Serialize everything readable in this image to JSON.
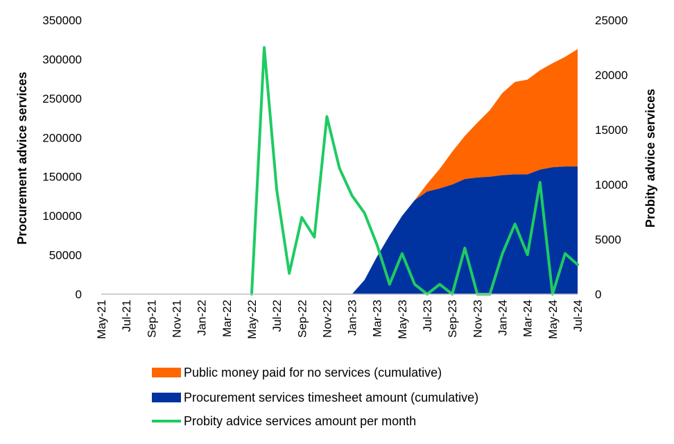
{
  "chart_data": {
    "type": "area",
    "x": [
      "May-21",
      "Jun-21",
      "Jul-21",
      "Aug-21",
      "Sep-21",
      "Oct-21",
      "Nov-21",
      "Dec-21",
      "Jan-22",
      "Feb-22",
      "Mar-22",
      "Apr-22",
      "May-22",
      "Jun-22",
      "Jul-22",
      "Aug-22",
      "Sep-22",
      "Oct-22",
      "Nov-22",
      "Dec-22",
      "Jan-23",
      "Feb-23",
      "Mar-23",
      "Apr-23",
      "May-23",
      "Jun-23",
      "Jul-23",
      "Aug-23",
      "Sep-23",
      "Oct-23",
      "Nov-23",
      "Dec-23",
      "Jan-24",
      "Feb-24",
      "Mar-24",
      "Apr-24",
      "May-24",
      "Jun-24",
      "Jul-24"
    ],
    "x_tick_labels": [
      "May-21",
      "Jul-21",
      "Sep-21",
      "Nov-21",
      "Jan-22",
      "Mar-22",
      "May-22",
      "Jul-22",
      "Sep-22",
      "Nov-22",
      "Jan-23",
      "Mar-23",
      "May-23",
      "Jul-23",
      "Sep-23",
      "Nov-23",
      "Jan-24",
      "Mar-24",
      "May-24",
      "Jul-24"
    ],
    "ylabel": "Procurement advice services",
    "y2label": "Probity advice services",
    "ylim": [
      0,
      350000
    ],
    "y2lim": [
      0,
      25000
    ],
    "y_ticks": [
      "0",
      "50000",
      "100000",
      "150000",
      "200000",
      "250000",
      "300000",
      "350000"
    ],
    "y2_ticks": [
      "0",
      "5000",
      "10000",
      "15000",
      "20000",
      "25000"
    ],
    "grid": false,
    "legend_position": "bottom",
    "series": [
      {
        "name": "Public money paid for no services (cumulative)",
        "kind": "stacked-area",
        "axis": "left",
        "color": "#ff6600",
        "values": [
          0,
          0,
          0,
          0,
          0,
          0,
          0,
          0,
          0,
          0,
          0,
          0,
          0,
          0,
          0,
          0,
          0,
          0,
          0,
          0,
          0,
          0,
          0,
          0,
          0,
          0,
          10000,
          25000,
          42000,
          55000,
          70000,
          85000,
          105000,
          118000,
          121000,
          127000,
          133000,
          140000,
          150000
        ]
      },
      {
        "name": "Procurement services timesheet amount (cumulative)",
        "kind": "stacked-area",
        "axis": "left",
        "color": "#0033a0",
        "values": [
          0,
          0,
          0,
          0,
          0,
          0,
          0,
          0,
          0,
          0,
          0,
          0,
          0,
          0,
          0,
          0,
          0,
          0,
          0,
          0,
          0,
          18000,
          48000,
          75000,
          100000,
          120000,
          131000,
          135000,
          140000,
          147000,
          149000,
          150000,
          152000,
          153000,
          153000,
          159000,
          162000,
          163000,
          163000
        ]
      },
      {
        "name": "Probity advice services amount per month",
        "kind": "line",
        "axis": "right",
        "color": "#1ecb63",
        "values": [
          0,
          0,
          0,
          0,
          0,
          0,
          0,
          0,
          0,
          0,
          0,
          0,
          0,
          22500,
          9500,
          1900,
          7000,
          5200,
          16200,
          11500,
          9000,
          7400,
          4500,
          900,
          3700,
          900,
          0,
          900,
          0,
          4200,
          0,
          0,
          3700,
          6400,
          3600,
          10200,
          0,
          3700,
          2700
        ]
      }
    ]
  }
}
